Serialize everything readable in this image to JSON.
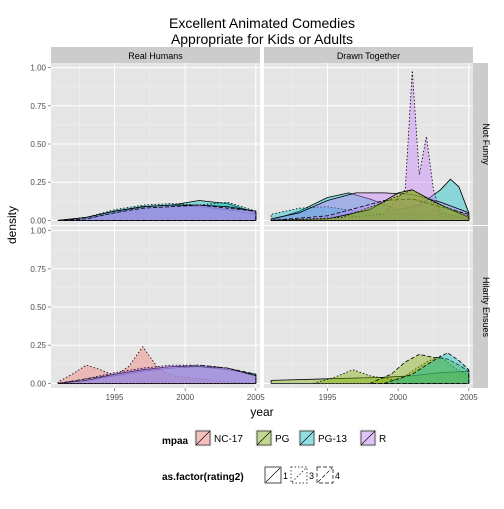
{
  "chart_data": {
    "type": "area",
    "title_lines": [
      "Excellent Animated Comedies",
      "Appropriate for Kids or Adults"
    ],
    "xlabel": "year",
    "ylabel": "density",
    "xlim": [
      1990.5,
      2005.3
    ],
    "ylim": [
      -0.03,
      1.03
    ],
    "x_ticks": [
      1995,
      2000,
      2005
    ],
    "y_ticks": [
      0.0,
      0.25,
      0.5,
      0.75,
      1.0
    ],
    "x_tick_labels": [
      "1995",
      "2000",
      "2005"
    ],
    "y_tick_labels": [
      "0.00",
      "0.25",
      "0.50",
      "0.75",
      "1.00"
    ],
    "column_facets": [
      "Real Humans",
      "Drawn Together"
    ],
    "row_facets": [
      "Not Funny",
      "Hilarity Ensues"
    ],
    "grid": true,
    "legend_position": "bottom",
    "fill_legend": {
      "title": "mpaa",
      "items": [
        {
          "label": "NC-17",
          "color": "#F8766D"
        },
        {
          "label": "PG",
          "color": "#7CAE00"
        },
        {
          "label": "PG-13",
          "color": "#00BFC4"
        },
        {
          "label": "R",
          "color": "#C77CFF"
        }
      ]
    },
    "linetype_legend": {
      "title": "as.factor(rating2)",
      "items": [
        {
          "label": "1",
          "dash": ""
        },
        {
          "label": "3",
          "dash": "1.5,2"
        },
        {
          "label": "4",
          "dash": "4,2"
        }
      ]
    },
    "panels": [
      {
        "column": "Real Humans",
        "row": "Not Funny",
        "series": [
          {
            "mpaa": "PG",
            "rating2": "1",
            "points": [
              [
                1991,
                0
              ],
              [
                1993,
                0.01
              ],
              [
                1995,
                0.05
              ],
              [
                1997,
                0.09
              ],
              [
                1999,
                0.1
              ],
              [
                2001,
                0.09
              ],
              [
                2003,
                0.07
              ],
              [
                2005,
                0.04
              ]
            ]
          },
          {
            "mpaa": "PG-13",
            "rating2": "1",
            "points": [
              [
                1991,
                0
              ],
              [
                1993,
                0.02
              ],
              [
                1995,
                0.06
              ],
              [
                1997,
                0.09
              ],
              [
                1999,
                0.1
              ],
              [
                2001,
                0.13
              ],
              [
                2003,
                0.11
              ],
              [
                2005,
                0.05
              ]
            ]
          },
          {
            "mpaa": "PG-13",
            "rating2": "3",
            "points": [
              [
                1991,
                0
              ],
              [
                1993,
                0.02
              ],
              [
                1995,
                0.07
              ],
              [
                1997,
                0.1
              ],
              [
                1999,
                0.11
              ],
              [
                2001,
                0.1
              ],
              [
                2003,
                0.12
              ],
              [
                2005,
                0.06
              ]
            ]
          },
          {
            "mpaa": "R",
            "rating2": "1",
            "points": [
              [
                1991,
                0
              ],
              [
                1993,
                0.02
              ],
              [
                1995,
                0.06
              ],
              [
                1997,
                0.09
              ],
              [
                1999,
                0.1
              ],
              [
                2001,
                0.1
              ],
              [
                2003,
                0.09
              ],
              [
                2005,
                0.06
              ]
            ]
          },
          {
            "mpaa": "R",
            "rating2": "4",
            "points": [
              [
                1991,
                0
              ],
              [
                1993,
                0.01
              ],
              [
                1995,
                0.05
              ],
              [
                1997,
                0.08
              ],
              [
                1999,
                0.09
              ],
              [
                2001,
                0.1
              ],
              [
                2003,
                0.08
              ],
              [
                2005,
                0.06
              ]
            ]
          }
        ]
      },
      {
        "column": "Drawn Together",
        "row": "Not Funny",
        "series": [
          {
            "mpaa": "PG-13",
            "rating2": "1",
            "points": [
              [
                1991,
                0.0
              ],
              [
                1993,
                0.06
              ],
              [
                1995,
                0.15
              ],
              [
                1996.5,
                0.18
              ],
              [
                1998,
                0.14
              ],
              [
                2000,
                0.07
              ],
              [
                2001.5,
                0.1
              ],
              [
                2003,
                0.2
              ],
              [
                2003.7,
                0.27
              ],
              [
                2004.3,
                0.22
              ],
              [
                2005,
                0.05
              ]
            ]
          },
          {
            "mpaa": "PG-13",
            "rating2": "3",
            "points": [
              [
                1991,
                0.04
              ],
              [
                1993,
                0.08
              ],
              [
                1995,
                0.09
              ],
              [
                1997,
                0.06
              ],
              [
                1999,
                0.04
              ],
              [
                2001,
                0.05
              ],
              [
                2003,
                0.03
              ],
              [
                2005,
                0.01
              ]
            ]
          },
          {
            "mpaa": "R",
            "rating2": "1",
            "points": [
              [
                1991,
                0.01
              ],
              [
                1993,
                0.05
              ],
              [
                1995,
                0.13
              ],
              [
                1997,
                0.18
              ],
              [
                1999,
                0.18
              ],
              [
                2001,
                0.17
              ],
              [
                2003,
                0.12
              ],
              [
                2005,
                0.05
              ]
            ]
          },
          {
            "mpaa": "R",
            "rating2": "3",
            "points": [
              [
                1991,
                0
              ],
              [
                1995,
                0.01
              ],
              [
                1999,
                0.04
              ],
              [
                2000.5,
                0.2
              ],
              [
                2001,
                0.98
              ],
              [
                2001.5,
                0.3
              ],
              [
                2002,
                0.55
              ],
              [
                2002.5,
                0.2
              ],
              [
                2003,
                0.05
              ],
              [
                2005,
                0.01
              ]
            ]
          },
          {
            "mpaa": "R",
            "rating2": "4",
            "points": [
              [
                1991,
                0
              ],
              [
                1995,
                0.03
              ],
              [
                1997,
                0.08
              ],
              [
                1999,
                0.13
              ],
              [
                2001,
                0.14
              ],
              [
                2003,
                0.09
              ],
              [
                2005,
                0.04
              ]
            ]
          },
          {
            "mpaa": "PG",
            "rating2": "1",
            "points": [
              [
                1991,
                0
              ],
              [
                1995,
                0.01
              ],
              [
                1998,
                0.07
              ],
              [
                2000,
                0.18
              ],
              [
                2001,
                0.2
              ],
              [
                2002,
                0.15
              ],
              [
                2003.5,
                0.08
              ],
              [
                2005,
                0.02
              ]
            ]
          },
          {
            "mpaa": "PG",
            "rating2": "3",
            "points": [
              [
                1991,
                0
              ],
              [
                1996,
                0.02
              ],
              [
                1999,
                0.12
              ],
              [
                2001,
                0.2
              ],
              [
                2002.5,
                0.12
              ],
              [
                2005,
                0.03
              ]
            ]
          }
        ]
      },
      {
        "column": "Real Humans",
        "row": "Hilarity Ensues",
        "series": [
          {
            "mpaa": "NC-17",
            "rating2": "3",
            "points": [
              [
                1991,
                0.01
              ],
              [
                1992,
                0.06
              ],
              [
                1993,
                0.12
              ],
              [
                1994,
                0.09
              ],
              [
                1995,
                0.05
              ],
              [
                1996,
                0.11
              ],
              [
                1997,
                0.24
              ],
              [
                1998,
                0.11
              ],
              [
                1999,
                0.05
              ],
              [
                2001,
                0.03
              ],
              [
                2003,
                0.01
              ],
              [
                2005,
                0
              ]
            ]
          },
          {
            "mpaa": "PG",
            "rating2": "1",
            "points": [
              [
                1991,
                0
              ],
              [
                1993,
                0.02
              ],
              [
                1995,
                0.05
              ],
              [
                1997,
                0.08
              ],
              [
                1999,
                0.1
              ],
              [
                2001,
                0.11
              ],
              [
                2003,
                0.09
              ],
              [
                2005,
                0.06
              ]
            ]
          },
          {
            "mpaa": "PG-13",
            "rating2": "4",
            "points": [
              [
                1991,
                0
              ],
              [
                1993,
                0.03
              ],
              [
                1995,
                0.06
              ],
              [
                1997,
                0.09
              ],
              [
                1999,
                0.11
              ],
              [
                2001,
                0.12
              ],
              [
                2003,
                0.1
              ],
              [
                2005,
                0.06
              ]
            ]
          },
          {
            "mpaa": "R",
            "rating2": "1",
            "points": [
              [
                1991,
                0
              ],
              [
                1993,
                0.02
              ],
              [
                1995,
                0.06
              ],
              [
                1997,
                0.09
              ],
              [
                1999,
                0.11
              ],
              [
                2001,
                0.11
              ],
              [
                2003,
                0.1
              ],
              [
                2005,
                0.05
              ]
            ]
          },
          {
            "mpaa": "R",
            "rating2": "3",
            "points": [
              [
                1991,
                0
              ],
              [
                1993,
                0.03
              ],
              [
                1995,
                0.07
              ],
              [
                1997,
                0.1
              ],
              [
                1999,
                0.12
              ],
              [
                2001,
                0.12
              ],
              [
                2003,
                0.1
              ],
              [
                2005,
                0.05
              ]
            ]
          }
        ]
      },
      {
        "column": "Drawn Together",
        "row": "Hilarity Ensues",
        "series": [
          {
            "mpaa": "PG",
            "rating2": "1",
            "points": [
              [
                1991,
                0.02
              ],
              [
                1995,
                0.03
              ],
              [
                1999,
                0.04
              ],
              [
                2001,
                0.05
              ],
              [
                2003,
                0.07
              ],
              [
                2005,
                0.08
              ]
            ]
          },
          {
            "mpaa": "PG",
            "rating2": "3",
            "points": [
              [
                1994,
                0
              ],
              [
                1995.5,
                0.04
              ],
              [
                1996.8,
                0.09
              ],
              [
                1998,
                0.05
              ],
              [
                2000,
                0.02
              ],
              [
                2001,
                0.08
              ],
              [
                2002,
                0.14
              ],
              [
                2003,
                0.18
              ],
              [
                2004,
                0.1
              ],
              [
                2005,
                0.05
              ]
            ]
          },
          {
            "mpaa": "PG",
            "rating2": "4",
            "points": [
              [
                1998,
                0
              ],
              [
                1999.5,
                0.06
              ],
              [
                2000.5,
                0.14
              ],
              [
                2001.5,
                0.19
              ],
              [
                2002.5,
                0.17
              ],
              [
                2003.5,
                0.16
              ],
              [
                2004.3,
                0.12
              ],
              [
                2005,
                0.08
              ]
            ]
          },
          {
            "mpaa": "PG-13",
            "rating2": "4",
            "points": [
              [
                1999,
                0
              ],
              [
                2001,
                0.06
              ],
              [
                2002.5,
                0.15
              ],
              [
                2003.5,
                0.2
              ],
              [
                2004.3,
                0.15
              ],
              [
                2005,
                0.09
              ]
            ]
          }
        ]
      }
    ]
  }
}
